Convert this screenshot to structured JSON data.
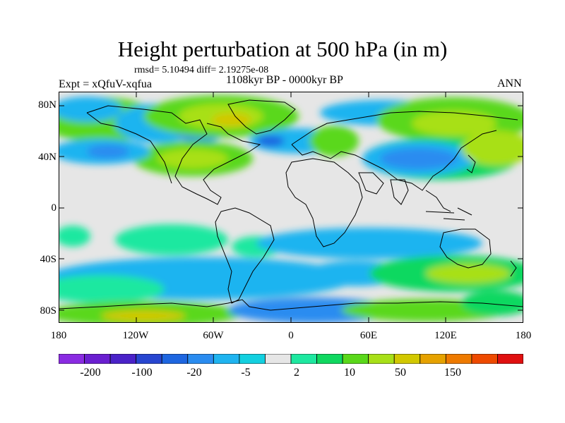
{
  "title": "Height perturbation at 500 hPa (in m)",
  "stats": "rmsd= 5.10494  diff= 2.19275e-08",
  "period": "1108kyr BP - 0000kyr BP",
  "expt": "Expt = xQfuV-xqfua",
  "season": "ANN",
  "axes": {
    "y_ticks": [
      "80N",
      "40N",
      "0",
      "40S",
      "80S"
    ],
    "x_ticks": [
      "180",
      "120W",
      "60W",
      "0",
      "60E",
      "120E",
      "180"
    ]
  },
  "colorbar": {
    "colors": [
      "#8a2be2",
      "#6a1fd0",
      "#4a22c8",
      "#2846d0",
      "#1e66e0",
      "#2a8cf0",
      "#1fb4f0",
      "#13d0e0",
      "#e6e6e6",
      "#1ee8a0",
      "#10d860",
      "#5ad81a",
      "#a8e018",
      "#d2c800",
      "#e6a200",
      "#ee7a00",
      "#ee4a00",
      "#e01010"
    ],
    "labels": [
      "-200",
      "-100",
      "-20",
      "-5",
      "2",
      "10",
      "50",
      "150"
    ]
  }
}
